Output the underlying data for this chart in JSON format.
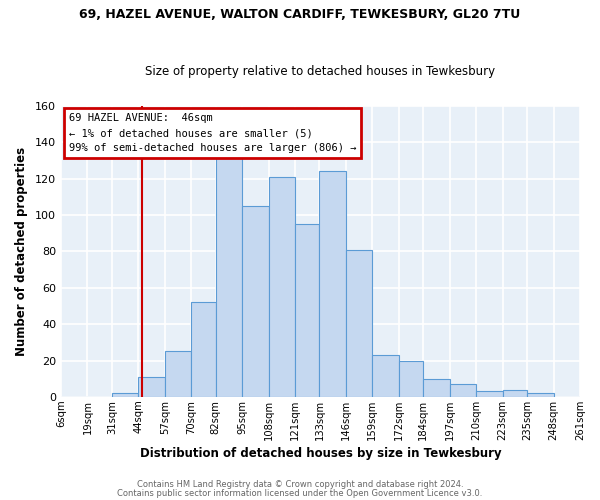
{
  "title1": "69, HAZEL AVENUE, WALTON CARDIFF, TEWKESBURY, GL20 7TU",
  "title2": "Size of property relative to detached houses in Tewkesbury",
  "xlabel": "Distribution of detached houses by size in Tewkesbury",
  "ylabel": "Number of detached properties",
  "footer1": "Contains HM Land Registry data © Crown copyright and database right 2024.",
  "footer2": "Contains public sector information licensed under the Open Government Licence v3.0.",
  "bin_labels": [
    "6sqm",
    "19sqm",
    "31sqm",
    "44sqm",
    "57sqm",
    "70sqm",
    "82sqm",
    "95sqm",
    "108sqm",
    "121sqm",
    "133sqm",
    "146sqm",
    "159sqm",
    "172sqm",
    "184sqm",
    "197sqm",
    "210sqm",
    "223sqm",
    "235sqm",
    "248sqm",
    "261sqm"
  ],
  "bar_values": [
    0,
    0,
    2,
    11,
    25,
    52,
    132,
    105,
    121,
    95,
    124,
    81,
    23,
    20,
    10,
    7,
    3,
    4,
    2,
    0
  ],
  "bar_color": "#c5d8f0",
  "bar_edge_color": "#5b9bd5",
  "annotation_line1": "69 HAZEL AVENUE:  46sqm",
  "annotation_line2": "← 1% of detached houses are smaller (5)",
  "annotation_line3": "99% of semi-detached houses are larger (806) →",
  "annotation_box_color": "#ffffff",
  "annotation_box_edge_color": "#cc0000",
  "property_line_x": 46,
  "ylim": [
    0,
    160
  ],
  "yticks": [
    0,
    20,
    40,
    60,
    80,
    100,
    120,
    140,
    160
  ],
  "bg_color": "#ffffff",
  "plot_bg_color": "#e8f0f8",
  "grid_color": "#ffffff",
  "bin_edges": [
    6,
    19,
    31,
    44,
    57,
    70,
    82,
    95,
    108,
    121,
    133,
    146,
    159,
    172,
    184,
    197,
    210,
    223,
    235,
    248,
    261
  ]
}
